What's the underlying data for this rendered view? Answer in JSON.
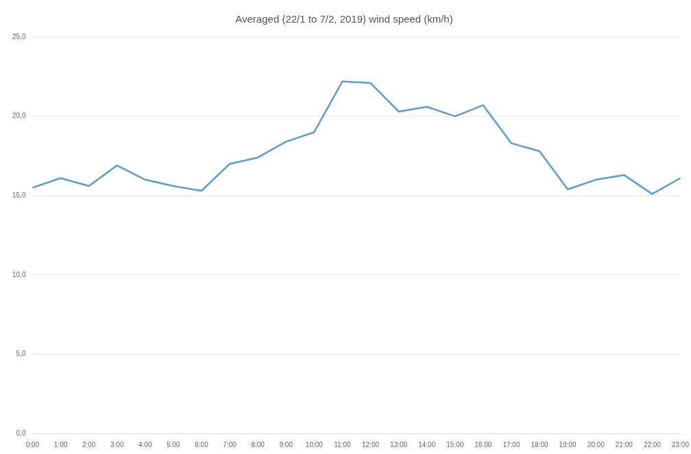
{
  "chart_data": {
    "type": "line",
    "title": "Averaged (22/1 to 7/2, 2019) wind speed (km/h)",
    "categories": [
      "0:00",
      "1:00",
      "2:00",
      "3:00",
      "4:00",
      "5:00",
      "6:00",
      "7:00",
      "8:00",
      "9:00",
      "10:00",
      "11:00",
      "12:00",
      "13:00",
      "14:00",
      "15:00",
      "16:00",
      "17:00",
      "18:00",
      "19:00",
      "20:00",
      "21:00",
      "22:00",
      "23:00"
    ],
    "series": [
      {
        "color": "#5b9bd5",
        "values": [
          15.5,
          16.1,
          15.6,
          16.9,
          16.0,
          15.6,
          15.3,
          17.0,
          17.4,
          18.4,
          19.0,
          22.2,
          22.1,
          20.3,
          20.6,
          20.0,
          20.7,
          18.3,
          17.8,
          15.4,
          16.0,
          16.3,
          15.1,
          16.1
        ]
      }
    ],
    "ylim": [
      0,
      25
    ],
    "yticks": [
      {
        "value": 0,
        "label": "0,0"
      },
      {
        "value": 5,
        "label": "5,0"
      },
      {
        "value": 10,
        "label": "10,0"
      },
      {
        "value": 15,
        "label": "15,0"
      },
      {
        "value": 20,
        "label": "20,0"
      },
      {
        "value": 25,
        "label": "25,0"
      }
    ],
    "grid": "y",
    "marker": "none",
    "line_style": "solid",
    "legend": false
  }
}
